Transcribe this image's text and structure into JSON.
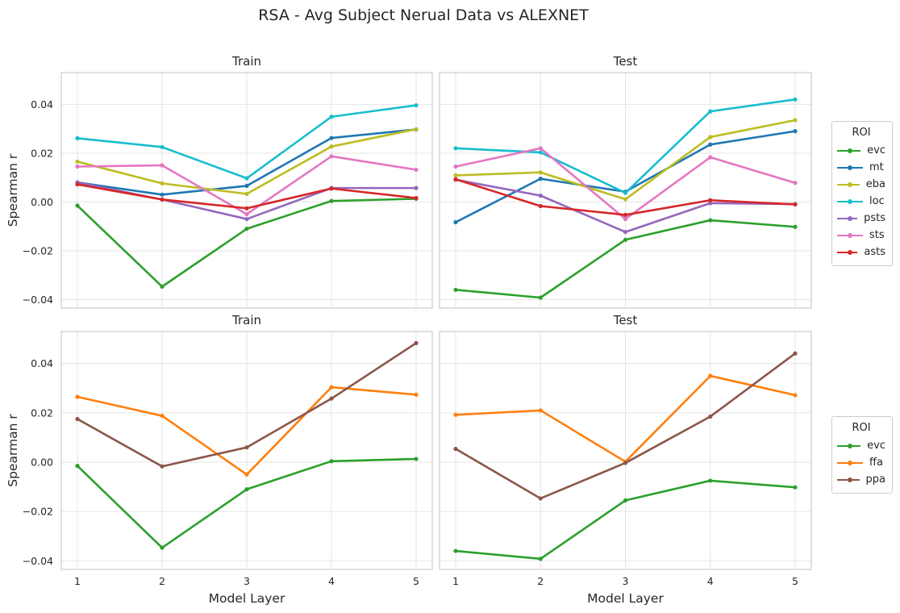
{
  "suptitle": "RSA - Avg Subject Nerual Data vs ALEXNET",
  "colors": {
    "evc": "#2ca02c",
    "mt": "#1f77b4",
    "eba": "#bcbd22",
    "loc": "#17becf",
    "psts": "#9467bd",
    "sts": "#e377c2",
    "asts": "#d62728",
    "ffa": "#ff7f0e",
    "ppa": "#8c564b"
  },
  "chart_data": [
    {
      "type": "line",
      "title": "Train",
      "xlabel": "",
      "ylabel": "Spearman r",
      "x": [
        1,
        2,
        3,
        4,
        5
      ],
      "ylim": [
        -0.0435,
        0.053
      ],
      "yticks": [
        -0.04,
        -0.02,
        0.0,
        0.02,
        0.04
      ],
      "ytick_labels": [
        "−0.04",
        "−0.02",
        "0.00",
        "0.02",
        "0.04"
      ],
      "xtick_labels": [],
      "grid": true,
      "legend_group": "top",
      "series": [
        {
          "name": "evc",
          "values": [
            -0.0015,
            -0.0347,
            -0.011,
            0.0004,
            0.0013
          ]
        },
        {
          "name": "mt",
          "values": [
            0.008,
            0.003,
            0.0066,
            0.0262,
            0.0297
          ]
        },
        {
          "name": "eba",
          "values": [
            0.0165,
            0.0076,
            0.0033,
            0.0227,
            0.0298
          ]
        },
        {
          "name": "loc",
          "values": [
            0.0261,
            0.0225,
            0.0097,
            0.0349,
            0.0396
          ]
        },
        {
          "name": "psts",
          "values": [
            0.008,
            0.001,
            -0.007,
            0.0057,
            0.0057
          ]
        },
        {
          "name": "sts",
          "values": [
            0.0145,
            0.015,
            -0.005,
            0.0187,
            0.0132
          ]
        },
        {
          "name": "asts",
          "values": [
            0.0072,
            0.001,
            -0.0026,
            0.0055,
            0.0016
          ]
        }
      ]
    },
    {
      "type": "line",
      "title": "Test",
      "xlabel": "",
      "ylabel": "",
      "x": [
        1,
        2,
        3,
        4,
        5
      ],
      "ylim": [
        -0.0435,
        0.053
      ],
      "yticks": [
        -0.04,
        -0.02,
        0.0,
        0.02,
        0.04
      ],
      "ytick_labels": [],
      "xtick_labels": [],
      "grid": true,
      "legend_group": "top",
      "series": [
        {
          "name": "evc",
          "values": [
            -0.036,
            -0.0392,
            -0.0155,
            -0.0075,
            -0.0102
          ]
        },
        {
          "name": "mt",
          "values": [
            -0.0083,
            0.0095,
            0.0042,
            0.0235,
            0.029
          ]
        },
        {
          "name": "eba",
          "values": [
            0.0109,
            0.0121,
            0.0011,
            0.0266,
            0.0335
          ]
        },
        {
          "name": "loc",
          "values": [
            0.022,
            0.0203,
            0.0037,
            0.0371,
            0.042
          ]
        },
        {
          "name": "psts",
          "values": [
            0.0091,
            0.0026,
            -0.0123,
            -0.0005,
            -0.0009
          ]
        },
        {
          "name": "sts",
          "values": [
            0.0145,
            0.022,
            -0.007,
            0.0183,
            0.0078
          ]
        },
        {
          "name": "asts",
          "values": [
            0.0093,
            -0.0017,
            -0.0053,
            0.0007,
            -0.001
          ]
        }
      ]
    },
    {
      "type": "line",
      "title": "Train",
      "xlabel": "Model Layer",
      "ylabel": "Spearman r",
      "x": [
        1,
        2,
        3,
        4,
        5
      ],
      "ylim": [
        -0.0435,
        0.053
      ],
      "yticks": [
        -0.04,
        -0.02,
        0.0,
        0.02,
        0.04
      ],
      "ytick_labels": [
        "−0.04",
        "−0.02",
        "0.00",
        "0.02",
        "0.04"
      ],
      "xtick_labels": [
        "1",
        "2",
        "3",
        "4",
        "5"
      ],
      "grid": true,
      "legend_group": "bottom",
      "series": [
        {
          "name": "evc",
          "values": [
            -0.0015,
            -0.0347,
            -0.011,
            0.0004,
            0.0013
          ]
        },
        {
          "name": "ffa",
          "values": [
            0.0265,
            0.0188,
            -0.005,
            0.0304,
            0.0274
          ]
        },
        {
          "name": "ppa",
          "values": [
            0.0175,
            -0.0017,
            0.006,
            0.0258,
            0.0483
          ]
        }
      ]
    },
    {
      "type": "line",
      "title": "Test",
      "xlabel": "Model Layer",
      "ylabel": "",
      "x": [
        1,
        2,
        3,
        4,
        5
      ],
      "ylim": [
        -0.0435,
        0.053
      ],
      "yticks": [
        -0.04,
        -0.02,
        0.0,
        0.02,
        0.04
      ],
      "ytick_labels": [],
      "xtick_labels": [
        "1",
        "2",
        "3",
        "4",
        "5"
      ],
      "grid": true,
      "legend_group": "bottom",
      "series": [
        {
          "name": "evc",
          "values": [
            -0.036,
            -0.0392,
            -0.0155,
            -0.0075,
            -0.0102
          ]
        },
        {
          "name": "ffa",
          "values": [
            0.0192,
            0.021,
            0.0002,
            0.035,
            0.0272
          ]
        },
        {
          "name": "ppa",
          "values": [
            0.0054,
            -0.0147,
            -0.0003,
            0.0185,
            0.0441
          ]
        }
      ]
    }
  ],
  "legends": {
    "top": {
      "title": "ROI",
      "items": [
        "evc",
        "mt",
        "eba",
        "loc",
        "psts",
        "sts",
        "asts"
      ]
    },
    "bottom": {
      "title": "ROI",
      "items": [
        "evc",
        "ffa",
        "ppa"
      ]
    }
  }
}
